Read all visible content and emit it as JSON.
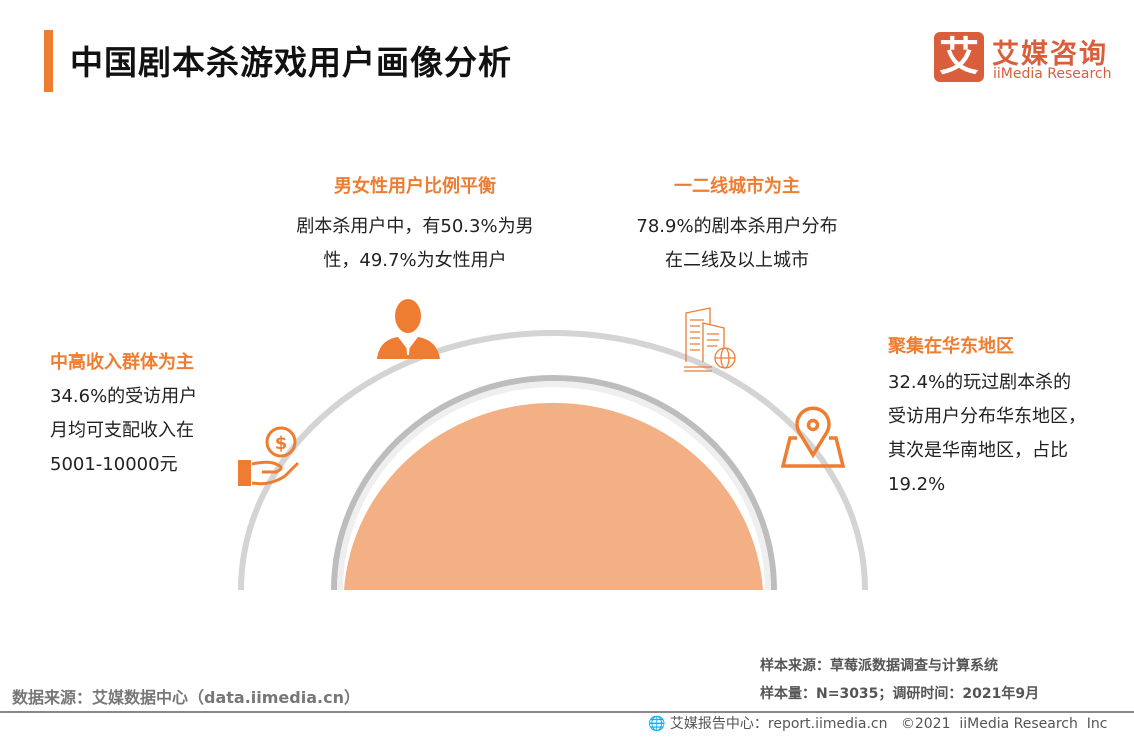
{
  "header": {
    "title": "中国剧本杀游戏用户画像分析"
  },
  "logo": {
    "mark": "艾",
    "cn": "艾媒咨询",
    "en": "iiMedia Research"
  },
  "colors": {
    "accent": "#ee7d31",
    "logo": "#d95e3c",
    "semicircle": "#f2b084",
    "arc": "#d4d4d4"
  },
  "blocks": {
    "gender": {
      "heading": "男女性用户比例平衡",
      "lines": [
        "剧本杀用户中，有50.3%为男",
        "性，49.7%为女性用户"
      ],
      "icon": "person-icon"
    },
    "city": {
      "heading": "一二线城市为主",
      "lines": [
        "78.9%的剧本杀用户分布",
        "在二线及以上城市"
      ],
      "icon": "building-globe-icon"
    },
    "income": {
      "heading": "中高收入群体为主",
      "lines": [
        "34.6%的受访用户",
        "月均可支配收入在",
        "5001-10000元"
      ],
      "icon": "hand-money-icon"
    },
    "region": {
      "heading": "聚集在华东地区",
      "lines": [
        "32.4%的玩过剧本杀的",
        "受访用户分布华东地区，",
        "其次是华南地区，占比",
        "19.2%"
      ],
      "icon": "location-pin-icon"
    }
  },
  "footer": {
    "source": "数据来源：艾媒数据中心（data.iimedia.cn）",
    "sample_source": "样本来源：草莓派数据调查与计算系统",
    "sample_size": "样本量：N=3035；调研时间：2021年9月",
    "copyright": "艾媒报告中心：report.iimedia.cn   ©2021  iiMedia Research  Inc"
  }
}
